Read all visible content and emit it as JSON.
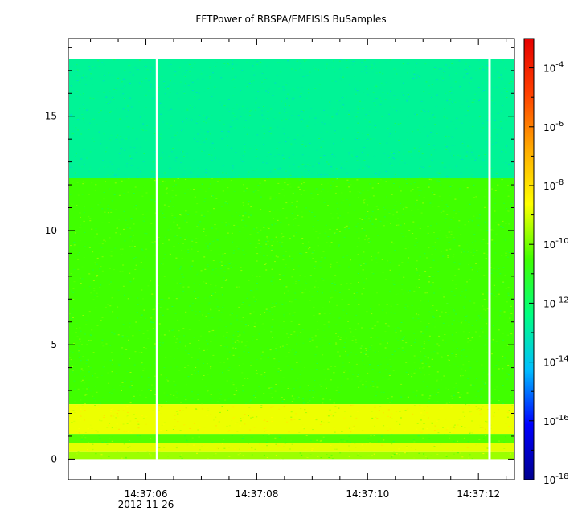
{
  "chart_data": {
    "type": "heatmap",
    "title": "FFTPower of RBSPA/EMFISIS  BuSamples",
    "xlabel": "",
    "ylabel": "",
    "x_tick_labels": [
      "14:37:06",
      "14:37:08",
      "14:37:10",
      "14:37:12"
    ],
    "x_date_label": "2012-11-26",
    "x_tick_seconds": [
      6,
      8,
      10,
      12
    ],
    "xlim_seconds": [
      4.6,
      12.65
    ],
    "y_ticks": [
      0,
      5,
      10,
      15
    ],
    "ylim": [
      -0.9,
      18.4
    ],
    "y_data_range": [
      0,
      17.5
    ],
    "colorbar": {
      "scale": "log",
      "range": [
        1e-18,
        0.001
      ],
      "colormap": "rainbow",
      "tick_base": "10",
      "tick_exponents": [
        "-4",
        "-6",
        "-8",
        "-10",
        "-12",
        "-14",
        "-16",
        "-18"
      ],
      "tick_values": [
        -4,
        -6,
        -8,
        -10,
        -12,
        -14,
        -16,
        -18
      ]
    },
    "bands": [
      {
        "y_range": [
          12.3,
          17.5
        ],
        "log_power": -12.7,
        "description": "upper"
      },
      {
        "y_range": [
          2.4,
          12.3
        ],
        "log_power": -10.5,
        "description": "middle"
      },
      {
        "y_range": [
          1.1,
          2.4
        ],
        "log_power": -8.8,
        "description": "strong"
      },
      {
        "y_range": [
          0.7,
          1.1
        ],
        "log_power": -10.3,
        "description": "narrow"
      },
      {
        "y_range": [
          0.3,
          0.7
        ],
        "log_power": -8.9,
        "description": "strong"
      },
      {
        "y_range": [
          0.0,
          0.3
        ],
        "log_power": -9.6,
        "description": "bottom"
      }
    ],
    "gaps_seconds": [
      6.2,
      12.2
    ]
  }
}
